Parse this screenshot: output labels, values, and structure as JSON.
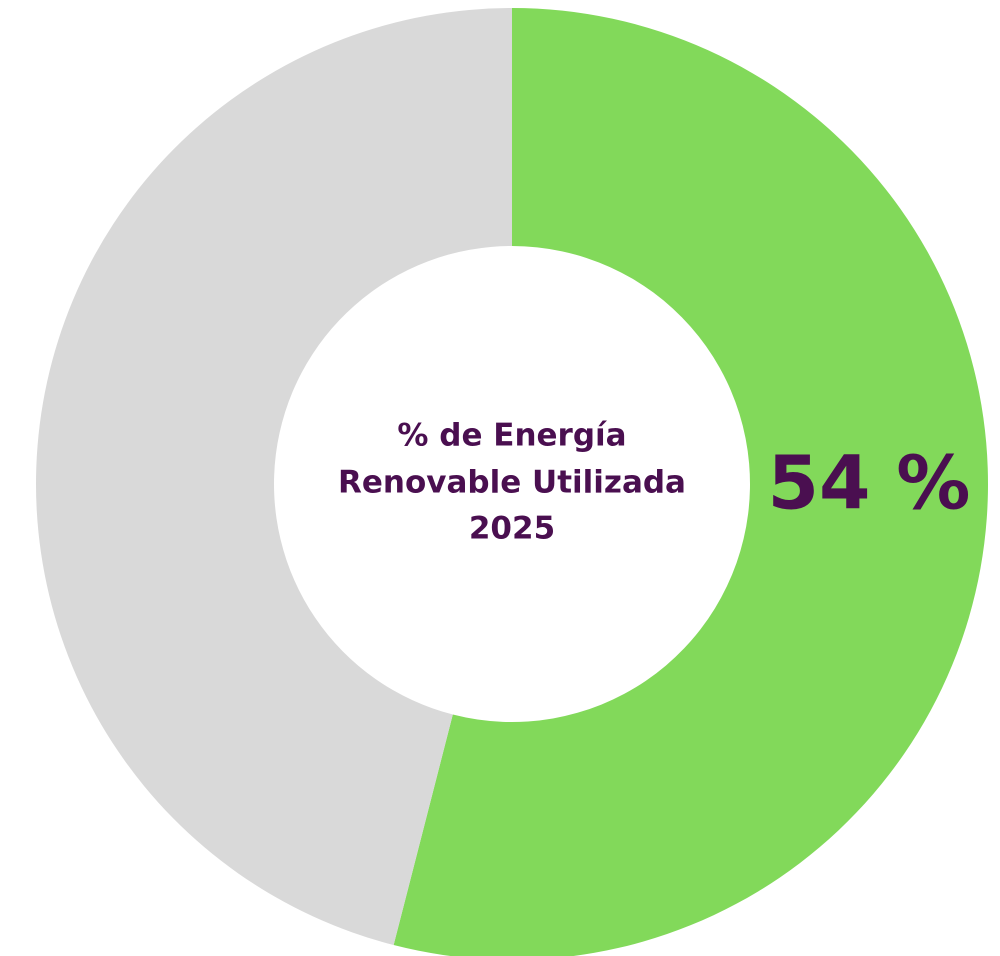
{
  "chart_data": {
    "type": "pie",
    "title": [
      "% de Energía",
      "Renovable Utilizada",
      "2025"
    ],
    "values": [
      54,
      46
    ],
    "value_labels": [
      "54 %",
      null
    ],
    "colors": [
      "#82d95a",
      "#d9d9d9"
    ],
    "donut": true
  }
}
